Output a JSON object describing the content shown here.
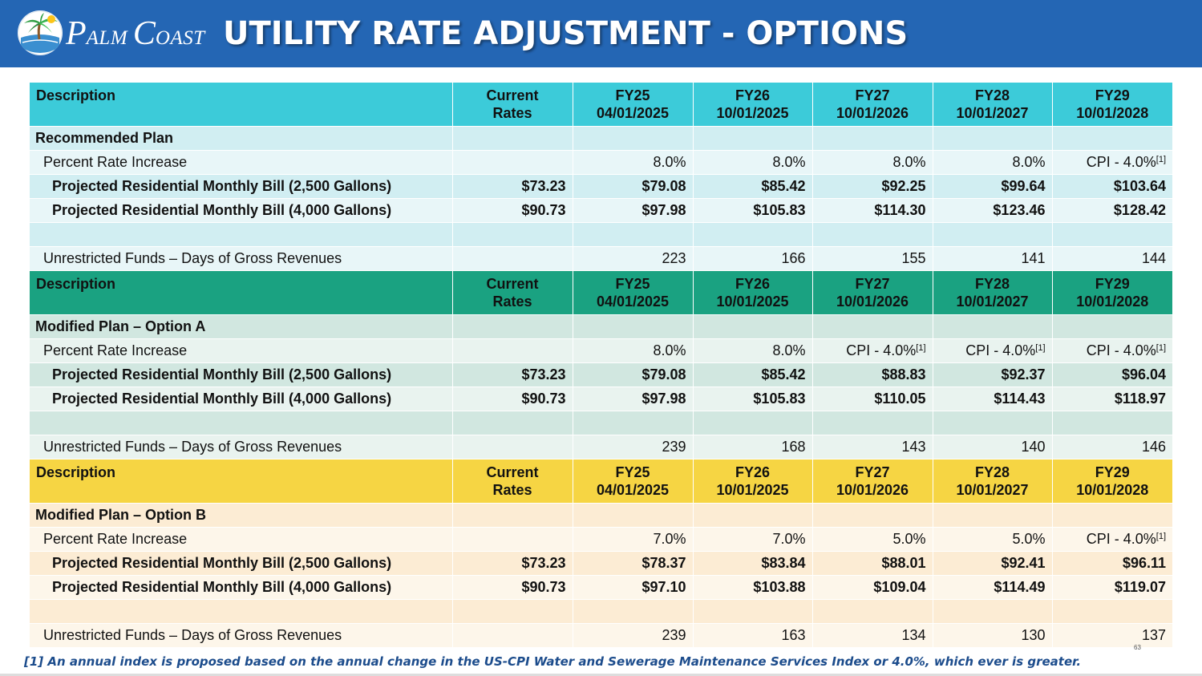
{
  "header": {
    "logo_first_1": "P",
    "logo_rest_1": "ALM ",
    "logo_first_2": "C",
    "logo_rest_2": "OAST",
    "title": "UTILITY RATE ADJUSTMENT - OPTIONS"
  },
  "colors": {
    "header_bg": "#2466b4",
    "recommended_header": "#3ccbd9",
    "option_a_header": "#1aa281",
    "option_b_header": "#f6d543"
  },
  "columns": [
    {
      "line1": "Description",
      "line2": ""
    },
    {
      "line1": "Current",
      "line2": "Rates"
    },
    {
      "line1": "FY25",
      "line2": "04/01/2025"
    },
    {
      "line1": "FY26",
      "line2": "10/01/2025"
    },
    {
      "line1": "FY27",
      "line2": "10/01/2026"
    },
    {
      "line1": "FY28",
      "line2": "10/01/2027"
    },
    {
      "line1": "FY29",
      "line2": "10/01/2028"
    }
  ],
  "sections": [
    {
      "plan_name": "Recommended Plan",
      "percent_row": {
        "label": "Percent Rate Increase",
        "current": "",
        "values": [
          "8.0%",
          "8.0%",
          "8.0%",
          "8.0%",
          "CPI - 4.0%"
        ]
      },
      "bill_2500": {
        "label": "Projected Residential Monthly Bill (2,500 Gallons)",
        "current": "$73.23",
        "values": [
          "$79.08",
          "$85.42",
          "$92.25",
          "$99.64",
          "$103.64"
        ]
      },
      "bill_4000": {
        "label": "Projected Residential Monthly Bill (4,000 Gallons)",
        "current": "$90.73",
        "values": [
          "$97.98",
          "$105.83",
          "$114.30",
          "$123.46",
          "$128.42"
        ]
      },
      "funds_row": {
        "label": "Unrestricted Funds – Days of Gross Revenues",
        "current": "",
        "values": [
          "223",
          "166",
          "155",
          "141",
          "144"
        ]
      }
    },
    {
      "plan_name": "Modified Plan – Option A",
      "percent_row": {
        "label": "Percent Rate Increase",
        "current": "",
        "values": [
          "8.0%",
          "8.0%",
          "CPI - 4.0%",
          "CPI - 4.0%",
          "CPI - 4.0%"
        ]
      },
      "bill_2500": {
        "label": "Projected Residential Monthly Bill (2,500 Gallons)",
        "current": "$73.23",
        "values": [
          "$79.08",
          "$85.42",
          "$88.83",
          "$92.37",
          "$96.04"
        ]
      },
      "bill_4000": {
        "label": "Projected Residential Monthly Bill (4,000 Gallons)",
        "current": "$90.73",
        "values": [
          "$97.98",
          "$105.83",
          "$110.05",
          "$114.43",
          "$118.97"
        ]
      },
      "funds_row": {
        "label": "Unrestricted Funds – Days of Gross Revenues",
        "current": "",
        "values": [
          "239",
          "168",
          "143",
          "140",
          "146"
        ]
      }
    },
    {
      "plan_name": "Modified Plan – Option B",
      "percent_row": {
        "label": "Percent Rate Increase",
        "current": "",
        "values": [
          "7.0%",
          "7.0%",
          "5.0%",
          "5.0%",
          "CPI - 4.0%"
        ]
      },
      "bill_2500": {
        "label": "Projected Residential Monthly Bill (2,500 Gallons)",
        "current": "$73.23",
        "values": [
          "$78.37",
          "$83.84",
          "$88.01",
          "$92.41",
          "$96.11"
        ]
      },
      "bill_4000": {
        "label": "Projected Residential Monthly Bill (4,000 Gallons)",
        "current": "$90.73",
        "values": [
          "$97.10",
          "$103.88",
          "$109.04",
          "$114.49",
          "$119.07"
        ]
      },
      "funds_row": {
        "label": "Unrestricted Funds – Days of Gross Revenues",
        "current": "",
        "values": [
          "239",
          "163",
          "134",
          "130",
          "137"
        ]
      }
    }
  ],
  "footnote_marker": "[1]",
  "footnote": "[1] An annual index is proposed based on the annual change in the US-CPI Water and Sewerage Maintenance Services Index or 4.0%, which ever is greater.",
  "page_number": "63"
}
